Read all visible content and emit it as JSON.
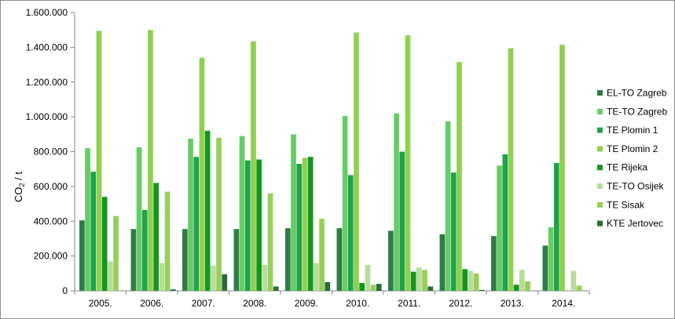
{
  "chart_data": {
    "type": "bar",
    "ylabel": {
      "main": "CO",
      "sub": "2",
      "unit": " / t"
    },
    "ylim": [
      0,
      1600000
    ],
    "yticks": [
      "0",
      "200.000",
      "400.000",
      "600.000",
      "800.000",
      "1.000.000",
      "1.200.000",
      "1.400.000",
      "1.600.000"
    ],
    "ytick_values": [
      0,
      200000,
      400000,
      600000,
      800000,
      1000000,
      1200000,
      1400000,
      1600000
    ],
    "grid": false,
    "legend_position": "right",
    "categories": [
      "2005.",
      "2006.",
      "2007.",
      "2008.",
      "2009.",
      "2010.",
      "2011.",
      "2012.",
      "2013.",
      "2014."
    ],
    "series": [
      {
        "name": "EL-TO Zagreb",
        "color": "#2e7d45",
        "values": [
          405000,
          355000,
          355000,
          355000,
          360000,
          360000,
          345000,
          325000,
          315000,
          260000
        ]
      },
      {
        "name": "TE-TO Zagreb",
        "color": "#66cc66",
        "values": [
          820000,
          825000,
          875000,
          890000,
          900000,
          1005000,
          1020000,
          975000,
          720000,
          365000
        ]
      },
      {
        "name": "TE Plomin 1",
        "color": "#1ea34a",
        "values": [
          685000,
          465000,
          770000,
          750000,
          730000,
          665000,
          800000,
          680000,
          785000,
          735000
        ]
      },
      {
        "name": "TE Plomin 2",
        "color": "#8fd14f",
        "values": [
          1495000,
          1500000,
          1340000,
          1435000,
          765000,
          1485000,
          1470000,
          1315000,
          1395000,
          1415000
        ]
      },
      {
        "name": "TE Rijeka",
        "color": "#14961e",
        "values": [
          540000,
          620000,
          920000,
          755000,
          770000,
          45000,
          110000,
          125000,
          35000,
          0
        ]
      },
      {
        "name": "TE-TO Osijek",
        "color": "#b8dc9c",
        "values": [
          170000,
          160000,
          145000,
          150000,
          160000,
          150000,
          135000,
          115000,
          120000,
          115000
        ]
      },
      {
        "name": "TE Sisak",
        "color": "#97cf5a",
        "values": [
          430000,
          570000,
          880000,
          560000,
          415000,
          35000,
          120000,
          100000,
          55000,
          30000
        ]
      },
      {
        "name": "KTE Jertovec",
        "color": "#2a6b3a",
        "values": [
          0,
          8000,
          95000,
          25000,
          50000,
          40000,
          25000,
          5000,
          0,
          0
        ]
      }
    ]
  }
}
